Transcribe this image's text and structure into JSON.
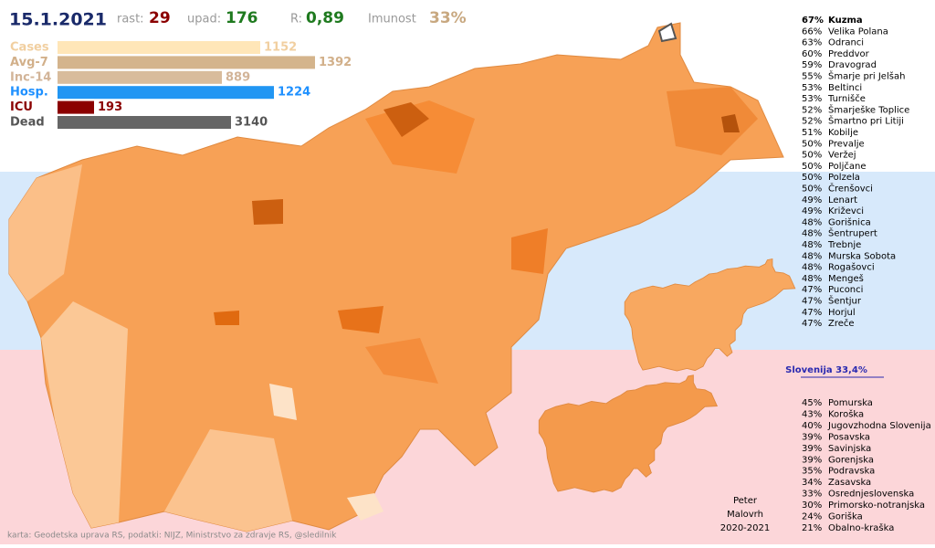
{
  "header": {
    "date": "15.1.2021",
    "stats": [
      {
        "label": "rast:",
        "value": "29"
      },
      {
        "label": "upad:",
        "value": "176"
      },
      {
        "label": "R:",
        "value": "0,89"
      },
      {
        "label": "Imunost",
        "value": "33%"
      }
    ]
  },
  "bars": [
    {
      "label": "Cases",
      "value": "1152"
    },
    {
      "label": "Avg-7",
      "value": "1392"
    },
    {
      "label": "Inc-14",
      "value": "889"
    },
    {
      "label": "Hosp.",
      "value": "1224"
    },
    {
      "label": "ICU",
      "value": "193"
    },
    {
      "label": "Dead",
      "value": "3140"
    }
  ],
  "municipalities": [
    [
      "67%",
      "Kuzma"
    ],
    [
      "66%",
      "Velika Polana"
    ],
    [
      "63%",
      "Odranci"
    ],
    [
      "60%",
      "Preddvor"
    ],
    [
      "59%",
      "Dravograd"
    ],
    [
      "55%",
      "Šmarje pri Jelšah"
    ],
    [
      "53%",
      "Beltinci"
    ],
    [
      "53%",
      "Turnišče"
    ],
    [
      "52%",
      "Šmarješke Toplice"
    ],
    [
      "52%",
      "Šmartno pri Litiji"
    ],
    [
      "51%",
      "Kobilje"
    ],
    [
      "50%",
      "Prevalje"
    ],
    [
      "50%",
      "Veržej"
    ],
    [
      "50%",
      "Poljčane"
    ],
    [
      "50%",
      "Polzela"
    ],
    [
      "50%",
      "Črenšovci"
    ],
    [
      "49%",
      "Lenart"
    ],
    [
      "49%",
      "Križevci"
    ],
    [
      "48%",
      "Gorišnica"
    ],
    [
      "48%",
      "Šentrupert"
    ],
    [
      "48%",
      "Trebnje"
    ],
    [
      "48%",
      "Murska Sobota"
    ],
    [
      "48%",
      "Rogašovci"
    ],
    [
      "48%",
      "Mengeš"
    ],
    [
      "47%",
      "Puconci"
    ],
    [
      "47%",
      "Šentjur"
    ],
    [
      "47%",
      "Horjul"
    ],
    [
      "47%",
      "Zreče"
    ]
  ],
  "national": "Slovenija 33,4%",
  "regions": [
    [
      "45%",
      "Pomurska"
    ],
    [
      "43%",
      "Koroška"
    ],
    [
      "40%",
      "Jugovzhodna Slovenija"
    ],
    [
      "39%",
      "Posavska"
    ],
    [
      "39%",
      "Savinjska"
    ],
    [
      "39%",
      "Gorenjska"
    ],
    [
      "35%",
      "Podravska"
    ],
    [
      "34%",
      "Zasavska"
    ],
    [
      "33%",
      "Osrednjeslovenska"
    ],
    [
      "30%",
      "Primorsko-notranjska"
    ],
    [
      "24%",
      "Goriška"
    ],
    [
      "21%",
      "Obalno-kraška"
    ]
  ],
  "author": [
    "Peter",
    "Malovrh",
    "2020-2021"
  ],
  "credits": "karta: Geodetska uprava RS,  podatki: NIJZ, Ministrstvo za zdravje RS, @sledilnik"
}
